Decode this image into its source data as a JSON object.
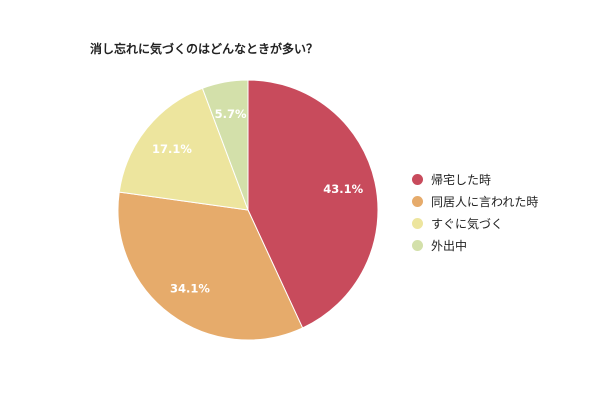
{
  "chart_data": {
    "type": "pie",
    "title": "消し忘れに気づくのはどんなときが多い？",
    "slices": [
      {
        "label": "帰宅した時",
        "value": 43.1,
        "value_label": "43.1%",
        "color": "#c84b5c"
      },
      {
        "label": "同居人に言われた時",
        "value": 34.1,
        "value_label": "34.1%",
        "color": "#e6ab6b"
      },
      {
        "label": "すぐに気づく",
        "value": 17.1,
        "value_label": "17.1%",
        "color": "#ede59e"
      },
      {
        "label": "外出中",
        "value": 5.7,
        "value_label": "5.7%",
        "color": "#d3e0aa"
      }
    ],
    "start": "12 o'clock",
    "direction": "clockwise",
    "legend_position": "right"
  }
}
